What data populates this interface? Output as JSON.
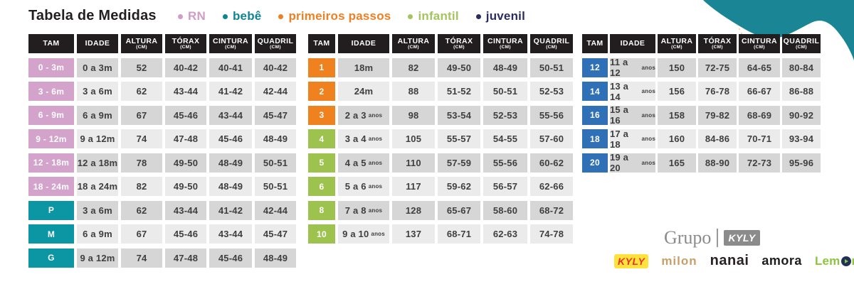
{
  "title": "Tabela de Medidas",
  "legend": [
    {
      "label": "RN",
      "color": "#cf9dc6"
    },
    {
      "label": "bebê",
      "color": "#0f8495"
    },
    {
      "label": "primeiros passos",
      "color": "#ef7f22"
    },
    {
      "label": "infantil",
      "color": "#a4c45e"
    },
    {
      "label": "juvenil",
      "color": "#2b2d60"
    }
  ],
  "columns": [
    {
      "label": "TAM",
      "unit": ""
    },
    {
      "label": "IDADE",
      "unit": ""
    },
    {
      "label": "ALTURA",
      "unit": "(CM)"
    },
    {
      "label": "TÓRAX",
      "unit": "(CM)"
    },
    {
      "label": "CINTURA",
      "unit": "(CM)"
    },
    {
      "label": "QUADRIL",
      "unit": "(CM)"
    }
  ],
  "tam_colors": {
    "rn": "#d3a3cb",
    "bebe": "#0c95a3",
    "pp": "#f0811f",
    "infantil": "#9dc24d",
    "juvenil": "#2f70b7"
  },
  "tables": [
    {
      "id": "rn-bebe",
      "rows": [
        {
          "tam": "0 - 3m",
          "category": "rn",
          "idade": "0 a 3m",
          "idade_suffix": "",
          "altura": "52",
          "torax": "40-42",
          "cintura": "40-41",
          "quadril": "40-42"
        },
        {
          "tam": "3 - 6m",
          "category": "rn",
          "idade": "3 a 6m",
          "idade_suffix": "",
          "altura": "62",
          "torax": "43-44",
          "cintura": "41-42",
          "quadril": "42-44"
        },
        {
          "tam": "6 - 9m",
          "category": "rn",
          "idade": "6 a 9m",
          "idade_suffix": "",
          "altura": "67",
          "torax": "45-46",
          "cintura": "43-44",
          "quadril": "45-47"
        },
        {
          "tam": "9 - 12m",
          "category": "rn",
          "idade": "9 a 12m",
          "idade_suffix": "",
          "altura": "74",
          "torax": "47-48",
          "cintura": "45-46",
          "quadril": "48-49"
        },
        {
          "tam": "12 - 18m",
          "category": "rn",
          "idade": "12 a 18m",
          "idade_suffix": "",
          "altura": "78",
          "torax": "49-50",
          "cintura": "48-49",
          "quadril": "50-51"
        },
        {
          "tam": "18 - 24m",
          "category": "rn",
          "idade": "18 a 24m",
          "idade_suffix": "",
          "altura": "82",
          "torax": "49-50",
          "cintura": "48-49",
          "quadril": "50-51"
        },
        {
          "tam": "P",
          "category": "bebe",
          "idade": "3 a 6m",
          "idade_suffix": "",
          "altura": "62",
          "torax": "43-44",
          "cintura": "41-42",
          "quadril": "42-44"
        },
        {
          "tam": "M",
          "category": "bebe",
          "idade": "6 a 9m",
          "idade_suffix": "",
          "altura": "67",
          "torax": "45-46",
          "cintura": "43-44",
          "quadril": "45-47"
        },
        {
          "tam": "G",
          "category": "bebe",
          "idade": "9 a 12m",
          "idade_suffix": "",
          "altura": "74",
          "torax": "47-48",
          "cintura": "45-46",
          "quadril": "48-49"
        }
      ]
    },
    {
      "id": "primeiros-passos-infantil",
      "rows": [
        {
          "tam": "1",
          "category": "pp",
          "idade": "18m",
          "idade_suffix": "",
          "altura": "82",
          "torax": "49-50",
          "cintura": "48-49",
          "quadril": "50-51"
        },
        {
          "tam": "2",
          "category": "pp",
          "idade": "24m",
          "idade_suffix": "",
          "altura": "88",
          "torax": "51-52",
          "cintura": "50-51",
          "quadril": "52-53"
        },
        {
          "tam": "3",
          "category": "pp",
          "idade": "2 a 3",
          "idade_suffix": "anos",
          "altura": "98",
          "torax": "53-54",
          "cintura": "52-53",
          "quadril": "55-56"
        },
        {
          "tam": "4",
          "category": "infantil",
          "idade": "3 a 4",
          "idade_suffix": "anos",
          "altura": "105",
          "torax": "55-57",
          "cintura": "54-55",
          "quadril": "57-60"
        },
        {
          "tam": "5",
          "category": "infantil",
          "idade": "4 a 5",
          "idade_suffix": "anos",
          "altura": "110",
          "torax": "57-59",
          "cintura": "55-56",
          "quadril": "60-62"
        },
        {
          "tam": "6",
          "category": "infantil",
          "idade": "5 a 6",
          "idade_suffix": "anos",
          "altura": "117",
          "torax": "59-62",
          "cintura": "56-57",
          "quadril": "62-66"
        },
        {
          "tam": "8",
          "category": "infantil",
          "idade": "7 a 8",
          "idade_suffix": "anos",
          "altura": "128",
          "torax": "65-67",
          "cintura": "58-60",
          "quadril": "68-72"
        },
        {
          "tam": "10",
          "category": "infantil",
          "idade": "9 a 10",
          "idade_suffix": "anos",
          "altura": "137",
          "torax": "68-71",
          "cintura": "62-63",
          "quadril": "74-78"
        }
      ]
    },
    {
      "id": "juvenil",
      "rows": [
        {
          "tam": "12",
          "category": "juvenil",
          "idade": "11 a 12",
          "idade_suffix": "anos",
          "altura": "150",
          "torax": "72-75",
          "cintura": "64-65",
          "quadril": "80-84"
        },
        {
          "tam": "14",
          "category": "juvenil",
          "idade": "13 a 14",
          "idade_suffix": "anos",
          "altura": "156",
          "torax": "76-78",
          "cintura": "66-67",
          "quadril": "86-88"
        },
        {
          "tam": "16",
          "category": "juvenil",
          "idade": "15 a 16",
          "idade_suffix": "anos",
          "altura": "158",
          "torax": "79-82",
          "cintura": "68-69",
          "quadril": "90-92"
        },
        {
          "tam": "18",
          "category": "juvenil",
          "idade": "17 a 18",
          "idade_suffix": "anos",
          "altura": "160",
          "torax": "84-86",
          "cintura": "70-71",
          "quadril": "93-94"
        },
        {
          "tam": "20",
          "category": "juvenil",
          "idade": "19 a 20",
          "idade_suffix": "anos",
          "altura": "165",
          "torax": "88-90",
          "cintura": "72-73",
          "quadril": "95-96"
        }
      ]
    }
  ],
  "row_shades": {
    "dark": "#d6d6d6",
    "light": "#ebebeb"
  },
  "decoration": {
    "blob_color": "#1a8695",
    "dots_color": "#e2a94f"
  },
  "footer": {
    "grupo_word": "Grupo",
    "grupo_brand": "KYLY",
    "brands": [
      {
        "id": "kyly",
        "label": "KYLY"
      },
      {
        "id": "milon",
        "label": "milon"
      },
      {
        "id": "nanai",
        "label": "nanai"
      },
      {
        "id": "amora",
        "label": "amora"
      },
      {
        "id": "lemon",
        "label": "Lemon",
        "text_color": "#8cc63e",
        "o_color": "#223056"
      }
    ]
  }
}
